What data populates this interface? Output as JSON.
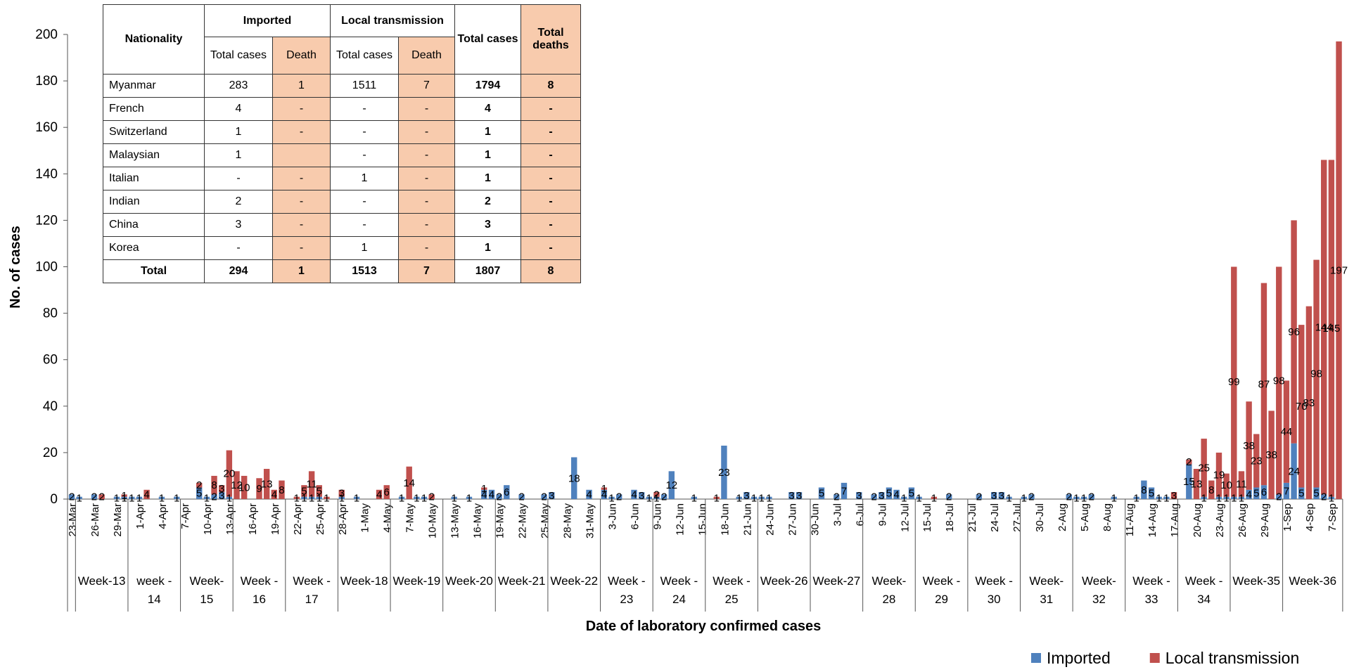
{
  "chart_data": {
    "type": "bar",
    "stacked": true,
    "ylabel": "No. of cases",
    "xlabel": "Date of laboratory confirmed cases",
    "categories": [
      "23-Mar",
      null,
      null,
      "26-Mar",
      null,
      null,
      "29-Mar",
      null,
      null,
      "1-Apr",
      null,
      null,
      "4-Apr",
      null,
      null,
      "7-Apr",
      null,
      null,
      "10-Apr",
      null,
      null,
      "13-Apr",
      null,
      null,
      "16-Apr",
      null,
      null,
      "19-Apr",
      null,
      null,
      "22-Apr",
      null,
      null,
      "25-Apr",
      null,
      null,
      "28-Apr",
      null,
      null,
      "1-May",
      null,
      null,
      "4-May",
      null,
      null,
      "7-May",
      null,
      null,
      "10-May",
      null,
      null,
      "13-May",
      null,
      null,
      "16-May",
      null,
      null,
      "19-May",
      null,
      null,
      "22-May",
      null,
      null,
      "25-May",
      null,
      null,
      "28-May",
      null,
      null,
      "31-May",
      null,
      null,
      "3-Jun",
      null,
      null,
      "6-Jun",
      null,
      null,
      "9-Jun",
      null,
      null,
      "12-Jun",
      null,
      null,
      "15-Jun",
      null,
      null,
      "18-Jun",
      null,
      null,
      "21-Jun",
      null,
      null,
      "24-Jun",
      null,
      null,
      "27-Jun",
      null,
      null,
      "30-Jun",
      null,
      null,
      "3-Jul",
      null,
      null,
      "6-Jul",
      null,
      null,
      "9-Jul",
      null,
      null,
      "12-Jul",
      null,
      null,
      "15-Jul",
      null,
      null,
      "18-Jul",
      null,
      null,
      "21-Jul",
      null,
      null,
      "24-Jul",
      null,
      null,
      "27-Jul",
      null,
      null,
      "30-Jul",
      null,
      null,
      "2-Aug",
      null,
      null,
      "5-Aug",
      null,
      null,
      "8-Aug",
      null,
      null,
      "11-Aug",
      null,
      null,
      "14-Aug",
      null,
      null,
      "17-Aug",
      null,
      null,
      "20-Aug",
      null,
      null,
      "23-Aug",
      null,
      null,
      "26-Aug",
      null,
      null,
      "29-Aug",
      null,
      null,
      "1-Sep",
      null,
      null,
      "4-Sep",
      null,
      null,
      "7-Sep",
      null
    ],
    "weeks": [
      "Week-13",
      "week - 14",
      "Week- 15",
      "Week - 16",
      "Week - 17",
      "Week-18",
      "Week-19",
      "Week-20",
      "Week-21",
      "Week-22",
      "Week - 23",
      "Week - 24",
      "Week - 25",
      "Week-26",
      "Week-27",
      "Week- 28",
      "Week - 29",
      "Week - 30",
      "Week- 31",
      "Week- 32",
      "Week - 33",
      "Week - 34",
      "Week-35",
      "Week-36"
    ],
    "series": [
      {
        "name": "Imported",
        "color": "#4f81bd",
        "values": [
          2,
          1,
          0,
          2,
          0,
          0,
          1,
          1,
          1,
          1,
          0,
          0,
          1,
          0,
          1,
          0,
          0,
          5,
          1,
          2,
          3,
          1,
          0,
          0,
          0,
          0,
          0,
          0,
          0,
          0,
          0,
          1,
          1,
          1,
          0,
          0,
          1,
          0,
          1,
          0,
          0,
          0,
          0,
          0,
          1,
          0,
          1,
          1,
          0,
          0,
          0,
          1,
          0,
          1,
          0,
          4,
          4,
          2,
          6,
          0,
          2,
          0,
          0,
          2,
          3,
          0,
          0,
          18,
          0,
          4,
          0,
          4,
          1,
          2,
          0,
          4,
          3,
          1,
          1,
          2,
          12,
          0,
          0,
          1,
          0,
          0,
          0,
          23,
          0,
          1,
          3,
          1,
          1,
          1,
          0,
          0,
          3,
          3,
          0,
          0,
          5,
          0,
          2,
          7,
          0,
          3,
          0,
          2,
          3,
          5,
          4,
          1,
          5,
          1,
          0,
          0,
          0,
          2,
          0,
          0,
          0,
          2,
          0,
          3,
          3,
          1,
          0,
          1,
          2,
          0,
          0,
          0,
          0,
          2,
          1,
          1,
          2,
          0,
          0,
          1,
          0,
          0,
          1,
          8,
          5,
          1,
          1,
          0,
          0,
          15,
          0,
          1,
          0,
          1,
          1,
          1,
          1,
          4,
          5,
          6,
          0,
          2,
          7,
          24,
          5,
          0,
          5,
          2,
          1,
          0
        ]
      },
      {
        "name": "Local transmission",
        "color": "#c0504d",
        "values": [
          0,
          0,
          0,
          0,
          2,
          0,
          0,
          1,
          0,
          0,
          4,
          0,
          0,
          0,
          0,
          0,
          0,
          2,
          0,
          8,
          3,
          20,
          12,
          10,
          0,
          9,
          13,
          4,
          8,
          0,
          1,
          5,
          11,
          5,
          1,
          0,
          3,
          0,
          0,
          0,
          0,
          4,
          6,
          0,
          0,
          14,
          0,
          0,
          2,
          0,
          0,
          0,
          0,
          0,
          0,
          1,
          0,
          0,
          0,
          0,
          0,
          0,
          0,
          0,
          0,
          0,
          0,
          0,
          0,
          0,
          0,
          1,
          0,
          0,
          0,
          0,
          0,
          0,
          2,
          0,
          0,
          0,
          0,
          0,
          0,
          0,
          1,
          0,
          0,
          0,
          0,
          0,
          0,
          0,
          0,
          0,
          0,
          0,
          0,
          0,
          0,
          0,
          0,
          0,
          0,
          0,
          0,
          0,
          0,
          0,
          0,
          0,
          0,
          0,
          0,
          1,
          0,
          0,
          0,
          0,
          0,
          0,
          0,
          0,
          0,
          0,
          0,
          0,
          0,
          0,
          0,
          0,
          0,
          0,
          0,
          0,
          0,
          0,
          0,
          0,
          0,
          0,
          0,
          0,
          0,
          0,
          0,
          3,
          0,
          2,
          13,
          25,
          8,
          19,
          10,
          99,
          11,
          38,
          23,
          87,
          38,
          98,
          44,
          96,
          70,
          83,
          98,
          144,
          145,
          197
        ]
      }
    ],
    "ylim": [
      0,
      200
    ],
    "yticks": [
      0,
      20,
      40,
      60,
      80,
      100,
      120,
      140,
      160,
      180,
      200
    ],
    "legend": "lower right"
  },
  "table": {
    "header": {
      "nationality": "Nationality",
      "imported": "Imported",
      "local": "Local transmission",
      "total_cases": "Total cases",
      "total_deaths": "Total deaths",
      "sub": [
        "Total cases",
        "Death",
        "Total cases",
        "Death"
      ]
    },
    "rows": [
      [
        "Myanmar",
        "283",
        "1",
        "1511",
        "7",
        "1794",
        "8"
      ],
      [
        "French",
        "4",
        "-",
        "-",
        "-",
        "4",
        "-"
      ],
      [
        "Switzerland",
        "1",
        "-",
        "-",
        "-",
        "1",
        "-"
      ],
      [
        "Malaysian",
        "1",
        null,
        "-",
        "-",
        "1",
        "-"
      ],
      [
        "Italian",
        "-",
        "-",
        "1",
        "-",
        "1",
        "-"
      ],
      [
        "Indian",
        "2",
        "-",
        "-",
        "-",
        "2",
        "-"
      ],
      [
        "China",
        "3",
        "-",
        "-",
        "-",
        "3",
        "-"
      ],
      [
        "Korea",
        "-",
        "-",
        "1",
        "-",
        "1",
        "-"
      ]
    ],
    "total": [
      "Total",
      "294",
      "1",
      "1513",
      "7",
      "1807",
      "8"
    ]
  }
}
